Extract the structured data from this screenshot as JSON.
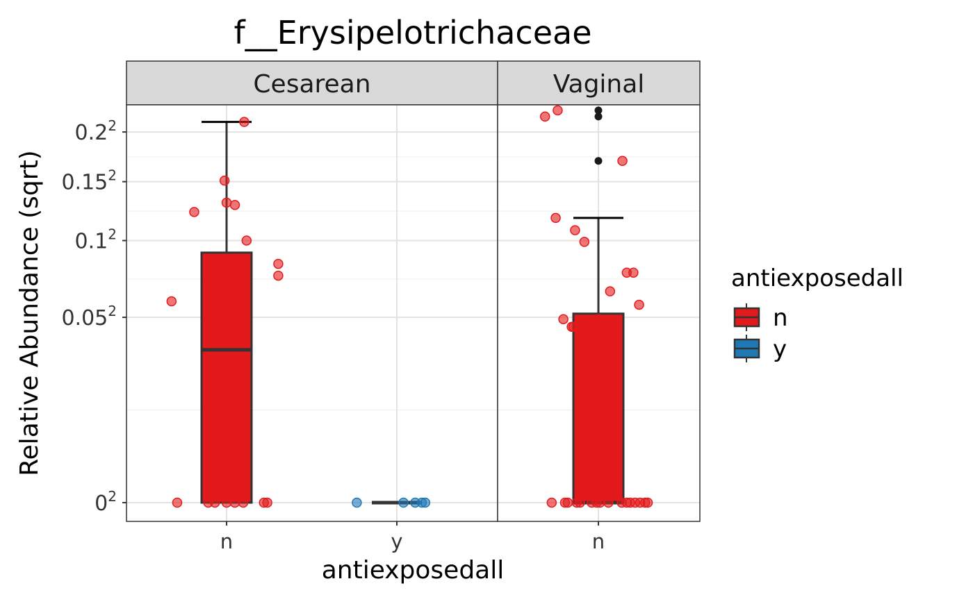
{
  "chart_data": {
    "type": "boxplot",
    "title": "f__Erysipelotrichaceae",
    "xlabel": "antiexposedall",
    "ylabel": "Relative Abundance (sqrt)",
    "y_scale": "sqrt",
    "ylim": [
      0,
      0.233
    ],
    "y_ticks": [
      {
        "value": 0,
        "base": "0"
      },
      {
        "value": 0.05,
        "base": "0.05"
      },
      {
        "value": 0.1,
        "base": "0.1"
      },
      {
        "value": 0.15,
        "base": "0.15"
      },
      {
        "value": 0.2,
        "base": "0.2"
      }
    ],
    "tick_exponent": "2",
    "grid": true,
    "legend": {
      "title": "antiexposedall",
      "placement": "right",
      "items": [
        {
          "label": "n",
          "color": "#e31a1c"
        },
        {
          "label": "y",
          "color": "#1f78b4"
        }
      ]
    },
    "panels": [
      {
        "label": "Cesarean",
        "groups": [
          {
            "label": "n",
            "color": "#e31a1c",
            "box": {
              "lower_whisker": 0,
              "q1": 0,
              "median": 0.034,
              "q3": 0.091,
              "upper_whisker": 0.211
            },
            "outliers": [],
            "points": [
              {
                "x": 0.53,
                "y": 0.211
              },
              {
                "x": -0.06,
                "y": 0.151
              },
              {
                "x": 0.0,
                "y": 0.131
              },
              {
                "x": 0.25,
                "y": 0.129
              },
              {
                "x": -0.97,
                "y": 0.123
              },
              {
                "x": 0.6,
                "y": 0.1
              },
              {
                "x": 1.55,
                "y": 0.083
              },
              {
                "x": 1.55,
                "y": 0.075
              },
              {
                "x": -1.65,
                "y": 0.059
              },
              {
                "x": -1.48,
                "y": 0
              },
              {
                "x": -0.55,
                "y": 0
              },
              {
                "x": -0.35,
                "y": 0
              },
              {
                "x": 0.0,
                "y": 0
              },
              {
                "x": 0.25,
                "y": 0
              },
              {
                "x": 0.5,
                "y": 0
              },
              {
                "x": 1.12,
                "y": 0
              },
              {
                "x": 1.22,
                "y": 0
              }
            ]
          },
          {
            "label": "y",
            "color": "#1f78b4",
            "box": {
              "lower_whisker": 0,
              "q1": 0,
              "median": 0,
              "q3": 0,
              "upper_whisker": 0
            },
            "outliers": [],
            "points": [
              {
                "x": -1.2,
                "y": 0
              },
              {
                "x": 0.2,
                "y": 0
              },
              {
                "x": 0.55,
                "y": 0
              },
              {
                "x": 0.75,
                "y": 0
              },
              {
                "x": 0.85,
                "y": 0
              }
            ]
          }
        ]
      },
      {
        "label": "Vaginal",
        "groups": [
          {
            "label": "n",
            "color": "#e31a1c",
            "box": {
              "lower_whisker": 0,
              "q1": 0,
              "median": 0,
              "q3": 0.052,
              "upper_whisker": 0.118
            },
            "outliers": [
              0.224,
              0.217,
              0.17
            ],
            "points": [
              {
                "x": -1.6,
                "y": 0.217
              },
              {
                "x": -1.22,
                "y": 0.224
              },
              {
                "x": 0.72,
                "y": 0.17
              },
              {
                "x": -1.28,
                "y": 0.118
              },
              {
                "x": -0.7,
                "y": 0.108
              },
              {
                "x": -0.42,
                "y": 0.099
              },
              {
                "x": 0.85,
                "y": 0.077
              },
              {
                "x": 1.05,
                "y": 0.077
              },
              {
                "x": 0.35,
                "y": 0.065
              },
              {
                "x": 1.22,
                "y": 0.057
              },
              {
                "x": -1.05,
                "y": 0.049
              },
              {
                "x": -0.8,
                "y": 0.045
              },
              {
                "x": -0.75,
                "y": 0.045
              },
              {
                "x": 0.0,
                "y": 0.049
              },
              {
                "x": -1.4,
                "y": 0
              },
              {
                "x": -1.0,
                "y": 0
              },
              {
                "x": -0.92,
                "y": 0
              },
              {
                "x": -0.65,
                "y": 0
              },
              {
                "x": -0.55,
                "y": 0
              },
              {
                "x": -0.2,
                "y": 0
              },
              {
                "x": -0.05,
                "y": 0
              },
              {
                "x": 0.05,
                "y": 0
              },
              {
                "x": 0.3,
                "y": 0
              },
              {
                "x": 0.7,
                "y": 0
              },
              {
                "x": 0.85,
                "y": 0
              },
              {
                "x": 0.95,
                "y": 0
              },
              {
                "x": 1.1,
                "y": 0
              },
              {
                "x": 1.25,
                "y": 0
              },
              {
                "x": 1.4,
                "y": 0
              },
              {
                "x": 1.48,
                "y": 0
              }
            ]
          }
        ]
      }
    ]
  }
}
